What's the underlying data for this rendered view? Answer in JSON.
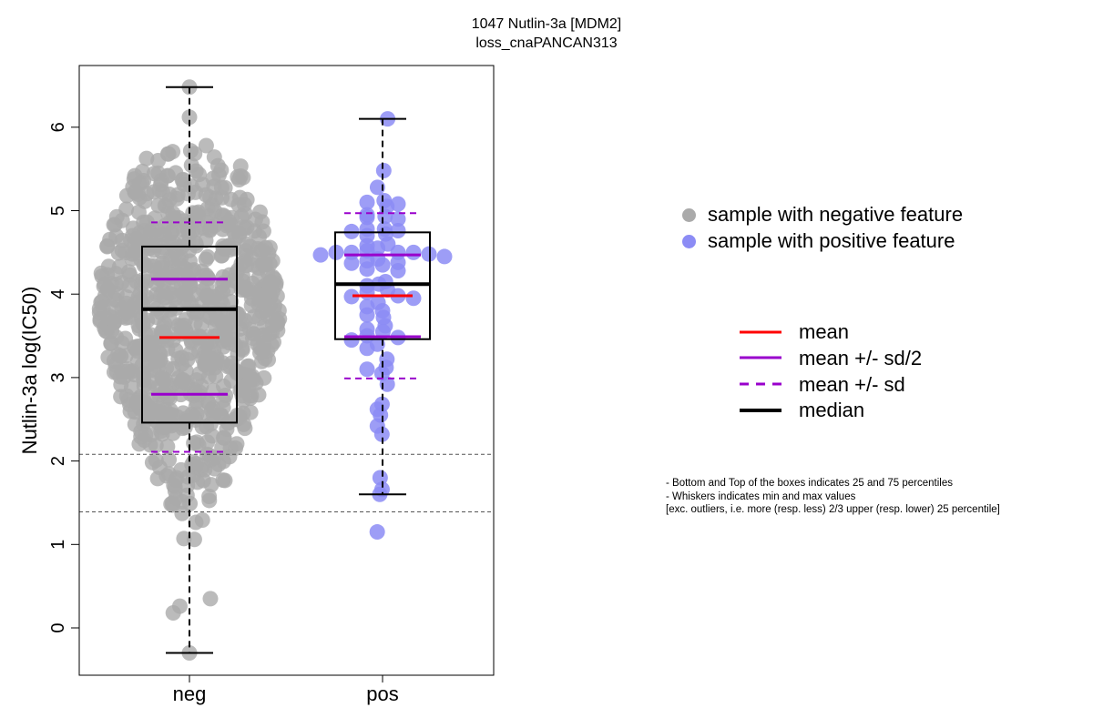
{
  "colors": {
    "neg_point": "#aaaaaa",
    "pos_point": "#8c8cf5",
    "mean": "#ff0000",
    "sd": "#9900cc",
    "median": "#000000"
  },
  "chart_data": {
    "type": "box-swarm",
    "title": "1047 Nutlin-3a [MDM2]",
    "subtitle": "loss_cnaPANCAN313",
    "xlabel": "",
    "ylabel": "Nutlin-3a log(IC50)",
    "categories": [
      "neg",
      "pos"
    ],
    "ylim": [
      -0.55,
      6.75
    ],
    "yticks": [
      0,
      1,
      2,
      3,
      4,
      5,
      6
    ],
    "reference_lines": [
      2.08,
      1.39
    ],
    "groups": [
      {
        "name": "neg",
        "min": -0.3,
        "q1": 2.46,
        "median": 3.82,
        "q3": 4.57,
        "max": 6.48,
        "mean": 3.48,
        "mean_minus_half_sd": 2.8,
        "mean_plus_half_sd": 4.18,
        "mean_minus_sd": 2.11,
        "mean_plus_sd": 4.86,
        "n_points": 820
      },
      {
        "name": "pos",
        "min": 1.6,
        "q1": 3.46,
        "median": 4.12,
        "q3": 4.74,
        "max": 6.1,
        "mean": 3.98,
        "mean_minus_half_sd": 3.49,
        "mean_plus_half_sd": 4.47,
        "mean_minus_sd": 2.99,
        "mean_plus_sd": 4.97,
        "points": [
          6.1,
          5.48,
          5.28,
          5.12,
          5.1,
          5.08,
          5.05,
          4.95,
          4.93,
          4.92,
          4.9,
          4.78,
          4.78,
          4.76,
          4.75,
          4.72,
          4.7,
          4.6,
          4.58,
          4.55,
          4.52,
          4.5,
          4.5,
          4.5,
          4.5,
          4.48,
          4.47,
          4.45,
          4.42,
          4.4,
          4.38,
          4.37,
          4.35,
          4.3,
          4.28,
          4.15,
          4.12,
          4.1,
          4.05,
          4.02,
          3.98,
          3.97,
          3.95,
          3.9,
          3.85,
          3.8,
          3.75,
          3.72,
          3.62,
          3.58,
          3.55,
          3.5,
          3.48,
          3.45,
          3.4,
          3.35,
          3.22,
          3.12,
          3.1,
          3.05,
          2.92,
          2.68,
          2.62,
          2.55,
          2.42,
          2.32,
          1.8,
          1.66,
          1.6,
          1.15
        ]
      }
    ],
    "legend": {
      "points": [
        {
          "label": "sample with negative feature",
          "color": "#aaaaaa"
        },
        {
          "label": "sample with positive feature",
          "color": "#8c8cf5"
        }
      ],
      "lines": [
        {
          "label": "mean",
          "color": "#ff0000",
          "style": "solid"
        },
        {
          "label": "mean +/- sd/2",
          "color": "#9900cc",
          "style": "solid"
        },
        {
          "label": "mean +/- sd",
          "color": "#9900cc",
          "style": "dashed"
        },
        {
          "label": "median",
          "color": "#000000",
          "style": "thick"
        }
      ]
    },
    "notes": [
      "- Bottom and Top of the boxes indicates 25 and 75 percentiles",
      "- Whiskers indicates min and max values",
      "[exc. outliers, i.e. more (resp. less) 2/3 upper (resp. lower) 25 percentile]"
    ]
  }
}
